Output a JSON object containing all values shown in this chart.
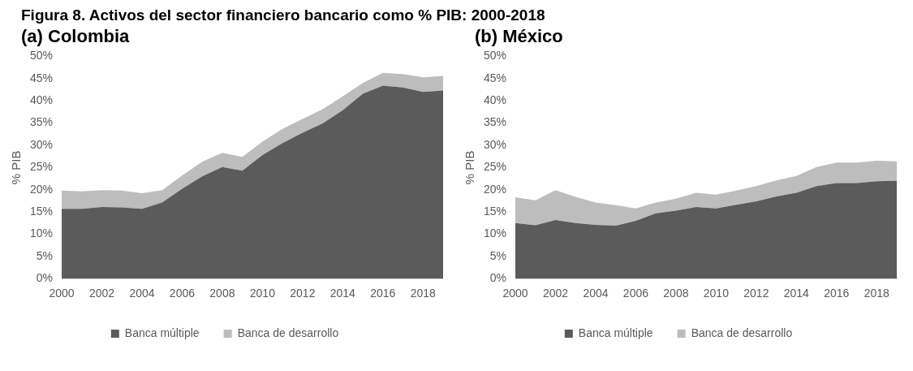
{
  "chart_data": [
    {
      "type": "area",
      "title": "Figura 8. Activos del sector financiero bancario como % PIB: 2000-2018",
      "subtitle": "(a) Colombia",
      "ylabel": "% PIB",
      "stacked": true,
      "legend": "bottom",
      "grid": false,
      "categories": [
        "2000",
        null,
        "2002",
        null,
        "2004",
        null,
        "2006",
        null,
        "2008",
        null,
        "2010",
        null,
        "2012",
        null,
        "2014",
        null,
        "2016",
        null,
        "2018",
        null
      ],
      "series": [
        {
          "name": "Banca múltiple",
          "color": "#5b5b5b",
          "values": [
            15.7,
            15.7,
            16.1,
            16.0,
            15.7,
            17.1,
            20.2,
            23.0,
            25.1,
            24.3,
            27.8,
            30.5,
            32.8,
            34.9,
            37.9,
            41.6,
            43.4,
            43.0,
            42.0,
            42.3
          ]
        },
        {
          "name": "Banca de desarrollo",
          "color": "#bdbdbd",
          "values": [
            4.1,
            3.9,
            3.8,
            3.8,
            3.5,
            2.8,
            3.0,
            3.3,
            3.2,
            3.1,
            3.0,
            3.2,
            3.1,
            3.2,
            3.1,
            2.4,
            2.9,
            3.0,
            3.3,
            3.3
          ]
        }
      ],
      "ylim": [
        0,
        50
      ],
      "yticks": [
        {
          "value": 0,
          "label": "0%"
        },
        {
          "value": 5,
          "label": "5%"
        },
        {
          "value": 10,
          "label": "10%"
        },
        {
          "value": 15,
          "label": "15%"
        },
        {
          "value": 20,
          "label": "20%"
        },
        {
          "value": 25,
          "label": "25%"
        },
        {
          "value": 30,
          "label": "30%"
        },
        {
          "value": 35,
          "label": "35%"
        },
        {
          "value": 40,
          "label": "40%"
        },
        {
          "value": 45,
          "label": "45%"
        },
        {
          "value": 50,
          "label": "50%"
        }
      ]
    },
    {
      "type": "area",
      "subtitle": "(b) México",
      "ylabel": "% PIB",
      "stacked": true,
      "legend": "bottom",
      "grid": false,
      "categories": [
        "2000",
        null,
        "2002",
        null,
        "2004",
        null,
        "2006",
        null,
        "2008",
        null,
        "2010",
        null,
        "2012",
        null,
        "2014",
        null,
        "2016",
        null,
        "2018",
        null
      ],
      "series": [
        {
          "name": "Banca múltiple",
          "color": "#5b5b5b",
          "values": [
            12.5,
            12.0,
            13.2,
            12.5,
            12.1,
            11.9,
            13.0,
            14.7,
            15.3,
            16.1,
            15.8,
            16.6,
            17.4,
            18.5,
            19.3,
            20.8,
            21.5,
            21.5,
            21.9,
            22.0
          ]
        },
        {
          "name": "Banca de desarrollo",
          "color": "#bdbdbd",
          "values": [
            5.8,
            5.6,
            6.7,
            5.9,
            5.0,
            4.6,
            2.8,
            2.4,
            2.7,
            3.2,
            3.1,
            3.2,
            3.4,
            3.6,
            3.8,
            4.3,
            4.6,
            4.6,
            4.6,
            4.4
          ]
        }
      ],
      "ylim": [
        0,
        50
      ],
      "yticks": [
        {
          "value": 0,
          "label": "0%"
        },
        {
          "value": 5,
          "label": "5%"
        },
        {
          "value": 10,
          "label": "10%"
        },
        {
          "value": 15,
          "label": "15%"
        },
        {
          "value": 20,
          "label": "20%"
        },
        {
          "value": 25,
          "label": "25%"
        },
        {
          "value": 30,
          "label": "30%"
        },
        {
          "value": 35,
          "label": "35%"
        },
        {
          "value": 40,
          "label": "40%"
        },
        {
          "value": 45,
          "label": "45%"
        },
        {
          "value": 50,
          "label": "50%"
        }
      ]
    }
  ]
}
